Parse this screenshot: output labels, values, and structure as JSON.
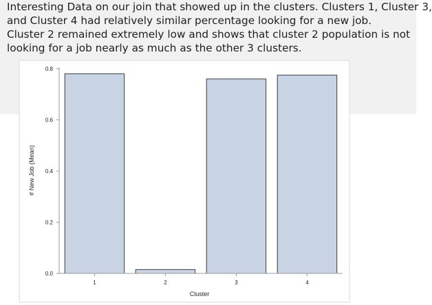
{
  "note": {
    "lines": [
      "Interesting Data on our join that showed up in the clusters. Clusters 1, Cluster 3,",
      "and Cluster 4 had relatively similar percentage looking for a new job.",
      "Cluster 2 remained extremely low and shows that cluster 2 population is not",
      "looking for a job nearly as much as the other 3 clusters."
    ]
  },
  "chart_data": {
    "type": "bar",
    "title": "",
    "xlabel": "Cluster",
    "ylabel": "# New Job (Mean)",
    "categories": [
      "1",
      "2",
      "3",
      "4"
    ],
    "values": [
      0.78,
      0.015,
      0.76,
      0.775
    ],
    "ylim": [
      0,
      0.8
    ],
    "yticks": [
      "0.0",
      "0.2",
      "0.4",
      "0.6",
      "0.8"
    ],
    "grid": false,
    "legend": "none",
    "colors": {
      "bar_fill": "#c8d4e4",
      "bar_stroke": "#3c3c3c",
      "axis": "#9a9a9a",
      "frame": "#d9d9d9",
      "text": "#222222"
    }
  }
}
